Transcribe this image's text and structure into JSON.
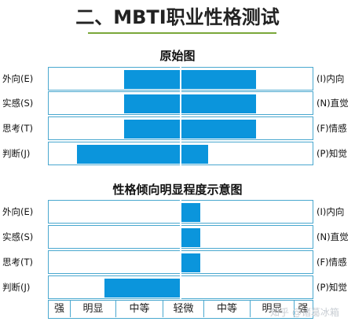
{
  "title": "二、MBTI职业性格测试",
  "watermark": "知乎 @诸葛冰箱",
  "scale_labels": [
    "强",
    "明显",
    "中等",
    "轻微",
    "中等",
    "明显",
    "强"
  ],
  "colors": {
    "bar": "#0b95dc",
    "border": "#4aa8cf",
    "title_underline": "#7aa83a"
  },
  "chart_data": [
    {
      "type": "bar",
      "orientation": "horizontal",
      "title": "原始图",
      "center": 0,
      "categories": [
        "外向(E) / (I)内向",
        "实感(S) / (N)直觉",
        "思考(T) / (F)情感",
        "判断(J) / (P)知觉"
      ],
      "left_labels": [
        "外向(E)",
        "实感(S)",
        "思考(T)",
        "判断(J)"
      ],
      "right_labels": [
        "(I)内向",
        "(N)直觉",
        "(F)情感",
        "(P)知觉"
      ],
      "series": [
        {
          "values_left": [
            14,
            14,
            14,
            26
          ],
          "values_right": [
            19,
            19,
            19,
            7
          ]
        }
      ],
      "xlim": [
        -33,
        33
      ],
      "grid": false
    },
    {
      "type": "bar",
      "orientation": "horizontal",
      "title": "性格倾向明显程度示意图",
      "center": 0,
      "categories": [
        "外向(E) / (I)内向",
        "实感(S) / (N)直觉",
        "思考(T) / (F)情感",
        "判断(J) / (P)知觉"
      ],
      "left_labels": [
        "外向(E)",
        "实感(S)",
        "思考(T)",
        "判断(J)"
      ],
      "right_labels": [
        "(I)内向",
        "(N)直觉",
        "(F)情感",
        "(P)知觉"
      ],
      "values": [
        5,
        5,
        5,
        -19
      ],
      "xlim": [
        -33,
        33
      ],
      "xtick_labels": [
        "强",
        "明显",
        "中等",
        "轻微",
        "中等",
        "明显",
        "强"
      ],
      "grid": false
    }
  ]
}
